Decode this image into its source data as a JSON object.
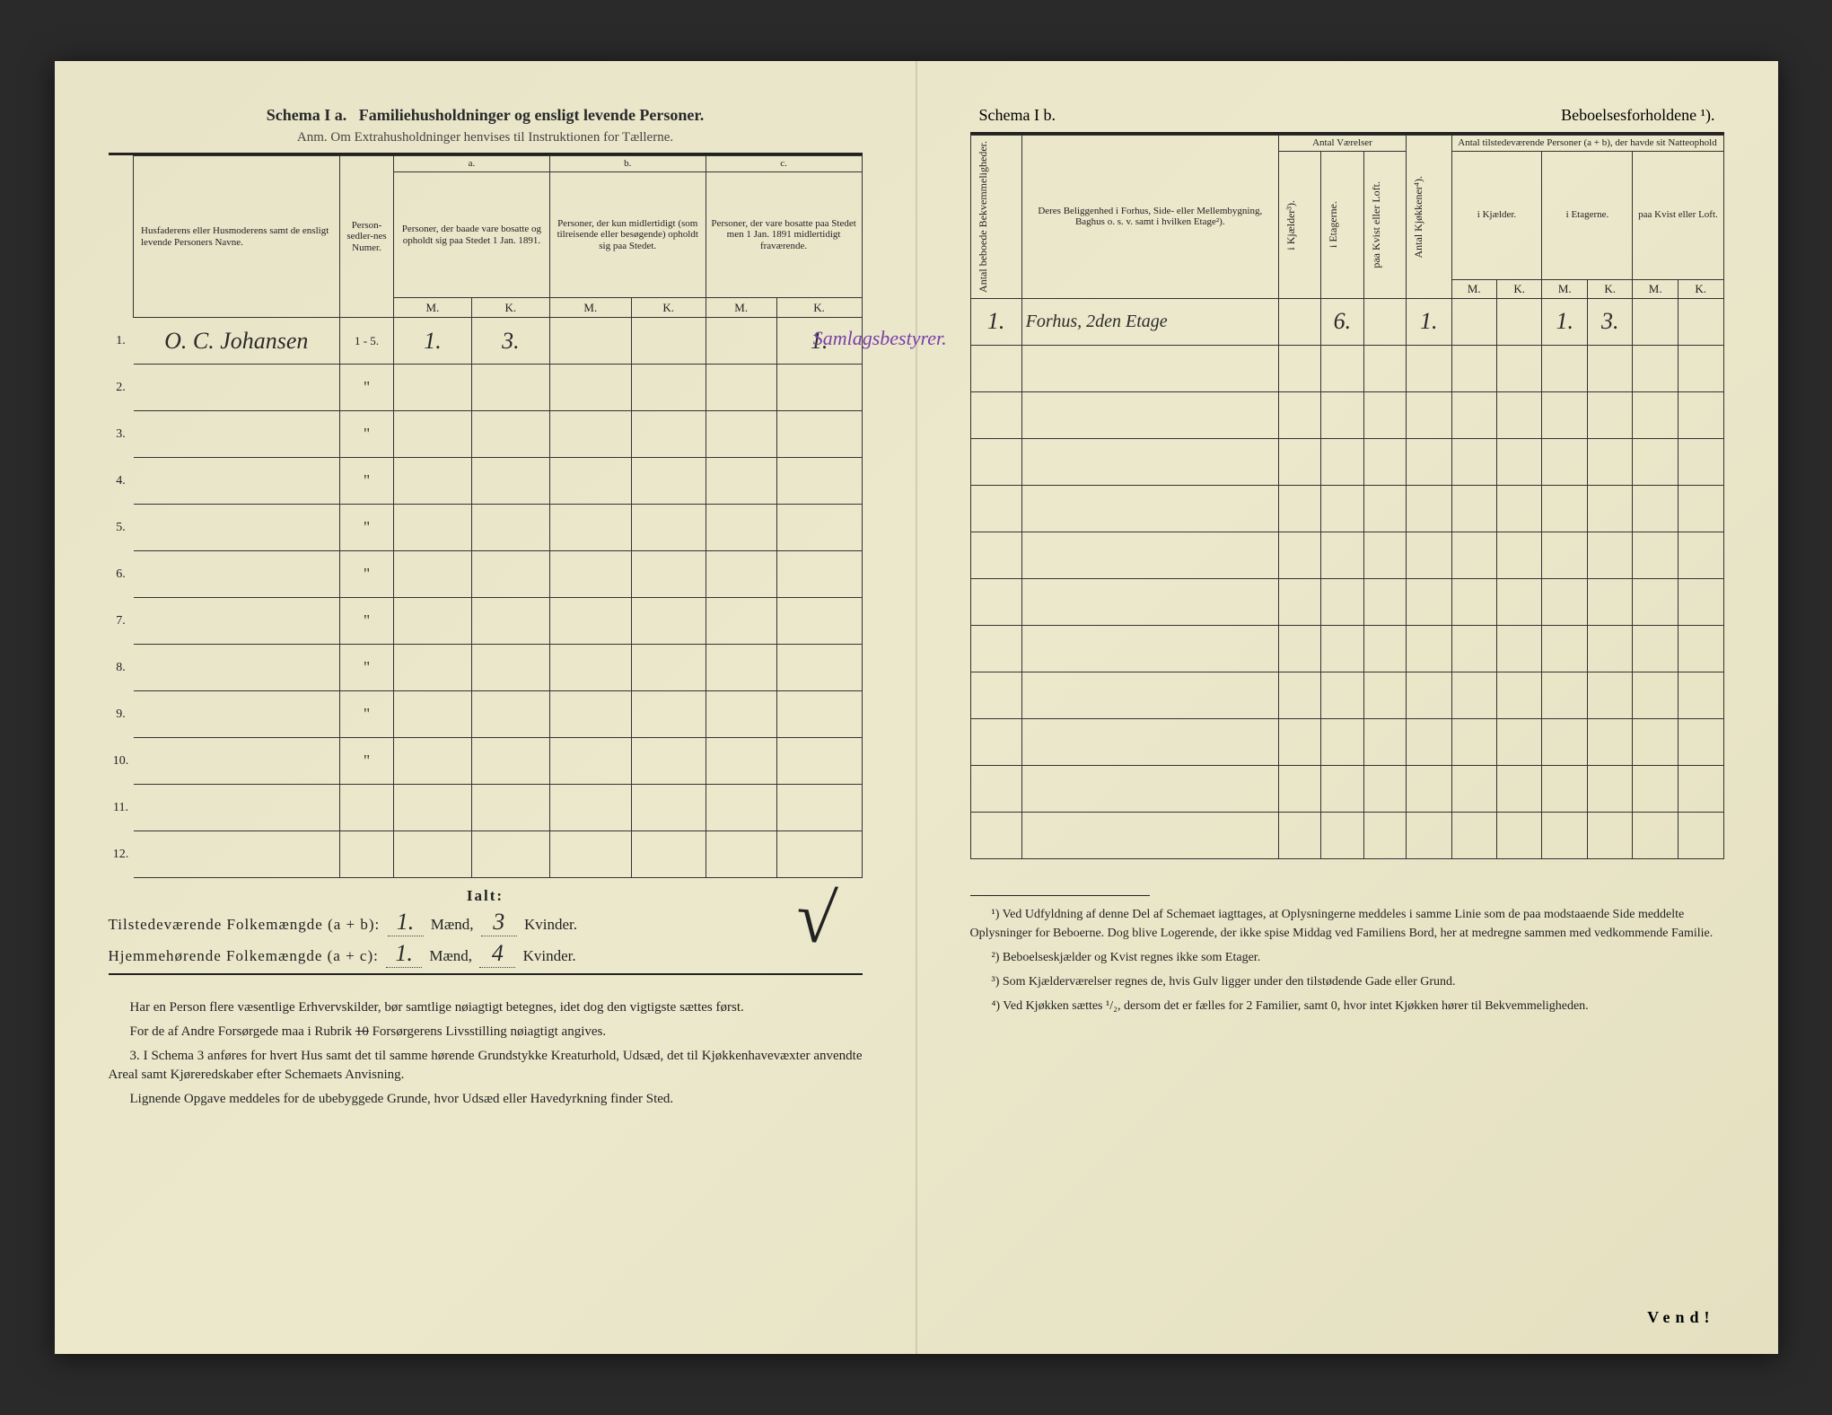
{
  "page": {
    "background": "#e8e4c8",
    "ink": "#2a2a2a",
    "purple_ink": "#7a3fa8"
  },
  "left": {
    "title_a": "Schema I a.",
    "title_b": "Familiehusholdninger og ensligt levende Personer.",
    "anm": "Anm. Om Extrahusholdninger henvises til Instruktionen for Tællerne.",
    "col_name": "Husfaderens eller Husmoderens samt de ensligt levende Personers Navne.",
    "col_person": "Person-sedler-nes Numer.",
    "group_a": "a.",
    "group_a_txt": "Personer, der baade vare bosatte og opholdt sig paa Stedet 1 Jan. 1891.",
    "group_b": "b.",
    "group_b_txt": "Personer, der kun midlertidigt (som tilreisende eller besøgende) opholdt sig paa Stedet.",
    "group_c": "c.",
    "group_c_txt": "Personer, der vare bosatte paa Stedet men 1 Jan. 1891 midlertidigt fraværende.",
    "M": "M.",
    "K": "K.",
    "rows": [
      {
        "n": "1.",
        "name": "O. C. Johansen",
        "pn": "1 - 5.",
        "aM": "1.",
        "aK": "3.",
        "bM": "",
        "bK": "",
        "cM": "",
        "cK": "1.",
        "side": "Samlagsbestyrer."
      },
      {
        "n": "2.",
        "name": "",
        "pn": "\"",
        "aM": "",
        "aK": "",
        "bM": "",
        "bK": "",
        "cM": "",
        "cK": ""
      },
      {
        "n": "3.",
        "name": "",
        "pn": "\"",
        "aM": "",
        "aK": "",
        "bM": "",
        "bK": "",
        "cM": "",
        "cK": ""
      },
      {
        "n": "4.",
        "name": "",
        "pn": "\"",
        "aM": "",
        "aK": "",
        "bM": "",
        "bK": "",
        "cM": "",
        "cK": ""
      },
      {
        "n": "5.",
        "name": "",
        "pn": "\"",
        "aM": "",
        "aK": "",
        "bM": "",
        "bK": "",
        "cM": "",
        "cK": ""
      },
      {
        "n": "6.",
        "name": "",
        "pn": "\"",
        "aM": "",
        "aK": "",
        "bM": "",
        "bK": "",
        "cM": "",
        "cK": ""
      },
      {
        "n": "7.",
        "name": "",
        "pn": "\"",
        "aM": "",
        "aK": "",
        "bM": "",
        "bK": "",
        "cM": "",
        "cK": ""
      },
      {
        "n": "8.",
        "name": "",
        "pn": "\"",
        "aM": "",
        "aK": "",
        "bM": "",
        "bK": "",
        "cM": "",
        "cK": ""
      },
      {
        "n": "9.",
        "name": "",
        "pn": "\"",
        "aM": "",
        "aK": "",
        "bM": "",
        "bK": "",
        "cM": "",
        "cK": ""
      },
      {
        "n": "10.",
        "name": "",
        "pn": "\"",
        "aM": "",
        "aK": "",
        "bM": "",
        "bK": "",
        "cM": "",
        "cK": ""
      },
      {
        "n": "11.",
        "name": "",
        "pn": "",
        "aM": "",
        "aK": "",
        "bM": "",
        "bK": "",
        "cM": "",
        "cK": ""
      },
      {
        "n": "12.",
        "name": "",
        "pn": "",
        "aM": "",
        "aK": "",
        "bM": "",
        "bK": "",
        "cM": "",
        "cK": ""
      }
    ],
    "ialt": "Ialt:",
    "tilstede_label": "Tilstedeværende Folkemængde (a + b):",
    "hjemme_label": "Hjemmehørende Folkemængde (a + c):",
    "maend": "Mænd,",
    "kvinder": "Kvinder.",
    "tM": "1.",
    "tK": "3",
    "hM": "1.",
    "hK": "4",
    "para1": "Har en Person flere væsentlige Erhvervskilder, bør samtlige nøiagtigt betegnes, idet dog den vigtigste sættes først.",
    "para2a": "For de af Andre Forsørgede maa i Rubrik ",
    "para2_struck": "10",
    "para2b": " Forsørgerens Livsstilling nøiagtigt angives.",
    "para3": "I Schema 3 anføres for hvert Hus samt det til samme hørende Grundstykke Kreaturhold, Udsæd, det til Kjøkkenhavevæxter anvendte Areal samt Kjøreredskaber efter Schemaets Anvisning.",
    "para4": "Lignende Opgave meddeles for de ubebyggede Grunde, hvor Udsæd eller Havedyrkning finder Sted.",
    "item3": "3."
  },
  "right": {
    "title_a": "Schema I b.",
    "title_b": "Beboelsesforholdene ¹).",
    "col_antal_bek": "Antal beboede Bekvemmeligheder.",
    "col_belig": "Deres Beliggenhed i Forhus, Side- eller Mellembygning, Baghus o. s. v. samt i hvilken Etage²).",
    "col_vaer": "Antal Værelser",
    "col_kjael": "i Kjælder³).",
    "col_etag": "i Etagerne.",
    "col_kvist": "paa Kvist eller Loft.",
    "col_kjok": "Antal Kjøkkener⁴).",
    "col_tilstede": "Antal tilstedeværende Personer (a + b), der havde sit Natteophold",
    "sub_kjael": "i Kjælder.",
    "sub_etag": "i Etagerne.",
    "sub_kvist": "paa Kvist eller Loft.",
    "M": "M.",
    "K": "K.",
    "rows": [
      {
        "bek": "1.",
        "belig": "Forhus, 2den Etage",
        "kj": "",
        "et": "6.",
        "kv": "",
        "kjok": "1.",
        "kjM": "",
        "kjK": "",
        "etM": "1.",
        "etK": "3.",
        "kvM": "",
        "kvK": ""
      },
      {
        "bek": "",
        "belig": "",
        "kj": "",
        "et": "",
        "kv": "",
        "kjok": "",
        "kjM": "",
        "kjK": "",
        "etM": "",
        "etK": "",
        "kvM": "",
        "kvK": ""
      },
      {
        "bek": "",
        "belig": "",
        "kj": "",
        "et": "",
        "kv": "",
        "kjok": "",
        "kjM": "",
        "kjK": "",
        "etM": "",
        "etK": "",
        "kvM": "",
        "kvK": ""
      },
      {
        "bek": "",
        "belig": "",
        "kj": "",
        "et": "",
        "kv": "",
        "kjok": "",
        "kjM": "",
        "kjK": "",
        "etM": "",
        "etK": "",
        "kvM": "",
        "kvK": ""
      },
      {
        "bek": "",
        "belig": "",
        "kj": "",
        "et": "",
        "kv": "",
        "kjok": "",
        "kjM": "",
        "kjK": "",
        "etM": "",
        "etK": "",
        "kvM": "",
        "kvK": ""
      },
      {
        "bek": "",
        "belig": "",
        "kj": "",
        "et": "",
        "kv": "",
        "kjok": "",
        "kjM": "",
        "kjK": "",
        "etM": "",
        "etK": "",
        "kvM": "",
        "kvK": ""
      },
      {
        "bek": "",
        "belig": "",
        "kj": "",
        "et": "",
        "kv": "",
        "kjok": "",
        "kjM": "",
        "kjK": "",
        "etM": "",
        "etK": "",
        "kvM": "",
        "kvK": ""
      },
      {
        "bek": "",
        "belig": "",
        "kj": "",
        "et": "",
        "kv": "",
        "kjok": "",
        "kjM": "",
        "kjK": "",
        "etM": "",
        "etK": "",
        "kvM": "",
        "kvK": ""
      },
      {
        "bek": "",
        "belig": "",
        "kj": "",
        "et": "",
        "kv": "",
        "kjok": "",
        "kjM": "",
        "kjK": "",
        "etM": "",
        "etK": "",
        "kvM": "",
        "kvK": ""
      },
      {
        "bek": "",
        "belig": "",
        "kj": "",
        "et": "",
        "kv": "",
        "kjok": "",
        "kjM": "",
        "kjK": "",
        "etM": "",
        "etK": "",
        "kvM": "",
        "kvK": ""
      },
      {
        "bek": "",
        "belig": "",
        "kj": "",
        "et": "",
        "kv": "",
        "kjok": "",
        "kjM": "",
        "kjK": "",
        "etM": "",
        "etK": "",
        "kvM": "",
        "kvK": ""
      },
      {
        "bek": "",
        "belig": "",
        "kj": "",
        "et": "",
        "kv": "",
        "kjok": "",
        "kjM": "",
        "kjK": "",
        "etM": "",
        "etK": "",
        "kvM": "",
        "kvK": ""
      }
    ],
    "foot1": "¹) Ved Udfyldning af denne Del af Schemaet iagttages, at Oplysningerne meddeles i samme Linie som de paa modstaaende Side meddelte Oplysninger for Beboerne. Dog blive Logerende, der ikke spise Middag ved Familiens Bord, her at medregne sammen med vedkommende Familie.",
    "foot2": "²) Beboelseskjælder og Kvist regnes ikke som Etager.",
    "foot3": "³) Som Kjælderværelser regnes de, hvis Gulv ligger under den tilstødende Gade eller Grund.",
    "foot4": "⁴) Ved Kjøkken sættes ¹/₂, dersom det er fælles for 2 Familier, samt 0, hvor intet Kjøkken hører til Bekvemmeligheden.",
    "vend": "Vend!"
  }
}
